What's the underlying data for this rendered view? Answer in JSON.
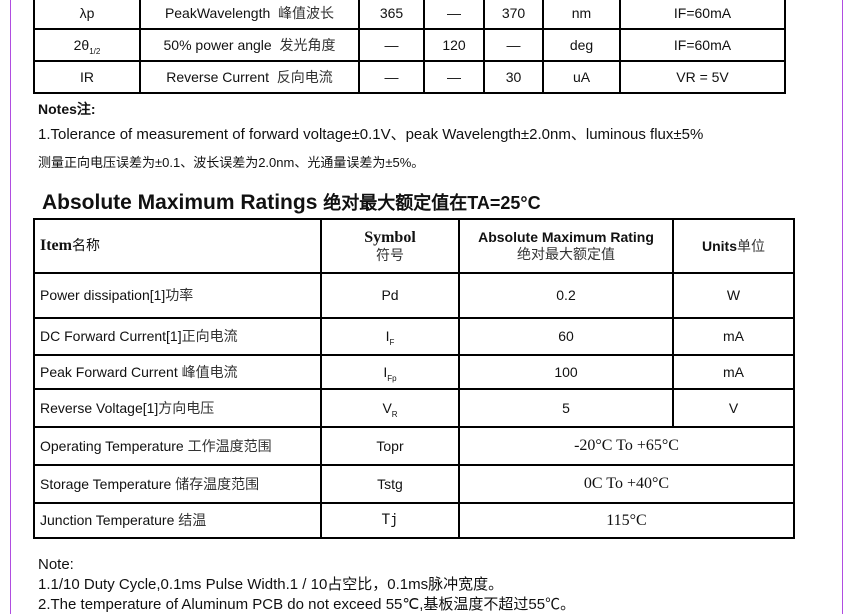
{
  "char_table": {
    "rows": [
      {
        "symbol": "λp",
        "param": "PeakWavelength",
        "param_cn": "峰值波长",
        "min": "365",
        "typ": "—",
        "max": "370",
        "unit": "nm",
        "cond": "IF=60mA"
      },
      {
        "symbol": "2θ",
        "symbol_sub": "1/2",
        "param": "50% power angle",
        "param_cn": "发光角度",
        "min": "—",
        "typ": "120",
        "max": "—",
        "unit": "deg",
        "cond": "IF=60mA"
      },
      {
        "symbol": "IR",
        "param": "Reverse Current",
        "param_cn": "反向电流",
        "min": "—",
        "typ": "—",
        "max": "30",
        "unit": "uA",
        "cond": "VR = 5V"
      }
    ]
  },
  "notes": {
    "title": "Notes",
    "title_cn": "注:",
    "line1": "1.Tolerance of measurement of forward voltage±0.1V、peak Wavelength±2.0nm、luminous flux±5%",
    "line2": "测量正向电压误差为±0.1、波长误差为2.0nm、光通量误差为±5%。"
  },
  "amr": {
    "heading": "Absolute Maximum Ratings",
    "heading_cn": "绝对最大额定值在TA=25°C",
    "headers": {
      "item": "Item",
      "item_cn": "名称",
      "symbol": "Symbol",
      "symbol_cn": "符号",
      "rating": "Absolute Maximum Rating",
      "rating_cn": "绝对最大额定值",
      "units": "Units",
      "units_cn": "单位"
    },
    "rows": [
      {
        "item": "Power dissipation[1]",
        "item_cn": "功率",
        "symbol": "Pd",
        "value": "0.2",
        "unit": "W"
      },
      {
        "item": "DC Forward Current[1]",
        "item_cn": "正向电流",
        "symbol": "I",
        "symbol_sub": "F",
        "value": "60",
        "unit": "mA"
      },
      {
        "item": "Peak Forward Current ",
        "item_cn": "峰值电流",
        "symbol": "I",
        "symbol_sub": "Fp",
        "value": "100",
        "unit": "mA"
      },
      {
        "item": "Reverse Voltage[1]",
        "item_cn": "方向电压",
        "symbol": "V",
        "symbol_sub": "R",
        "value": "5",
        "unit": "V"
      },
      {
        "item": "Operating Temperature ",
        "item_cn": "工作温度范围",
        "symbol": "Topr",
        "value": "-20°C To +65°C"
      },
      {
        "item": "Storage Temperature ",
        "item_cn": "储存温度范围",
        "symbol": "Tstg",
        "value": "0C To +40°C"
      },
      {
        "item": "Junction Temperature ",
        "item_cn": "结温",
        "symbol": "Tj",
        "value": "115°C"
      }
    ]
  },
  "footnotes": {
    "title": "Note:",
    "line1": "1.1/10 Duty Cycle,0.1ms Pulse Width.1 / 10占空比，0.1ms脉冲宽度。",
    "line2": "2.The temperature of Aluminum PCB do not exceed 55℃,基板温度不超过55℃。"
  }
}
